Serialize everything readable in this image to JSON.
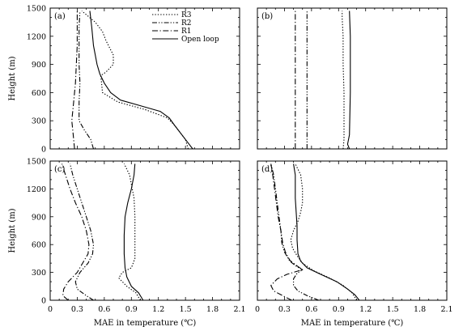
{
  "chart_data": {
    "type": "line",
    "xlabel": "MAE in temperature (℃)",
    "ylabel": "Height (m)",
    "xlim": [
      0,
      2.1
    ],
    "ylim": [
      0,
      1500
    ],
    "xticks": [
      0,
      0.3,
      0.6,
      0.9,
      1.2,
      1.5,
      1.8,
      2.1
    ],
    "xtick_labels": [
      "0",
      "0.3",
      "0.6",
      "0.9",
      "1.2",
      "1.5",
      "1.8",
      "2.1"
    ],
    "yticks": [
      0,
      300,
      600,
      900,
      1200,
      1500
    ],
    "ytick_labels": [
      "0",
      "300",
      "600",
      "900",
      "1200",
      "1500"
    ],
    "legend": {
      "placement": "top-right of panel (a)",
      "entries": [
        {
          "name": "R3",
          "dash": "dotted"
        },
        {
          "name": "R2",
          "dash": "dash-dot-dot"
        },
        {
          "name": "R1",
          "dash": "dash-dot"
        },
        {
          "name": "Open loop",
          "dash": "solid"
        }
      ]
    },
    "panels": [
      {
        "label": "(a)",
        "series": [
          {
            "name": "R3",
            "points": [
              [
                1.53,
                0
              ],
              [
                1.5,
                100
              ],
              [
                1.38,
                250
              ],
              [
                1.3,
                330
              ],
              [
                1.05,
                420
              ],
              [
                0.75,
                500
              ],
              [
                0.58,
                600
              ],
              [
                0.57,
                700
              ],
              [
                0.56,
                780
              ],
              [
                0.62,
                820
              ],
              [
                0.7,
                900
              ],
              [
                0.7,
                1000
              ],
              [
                0.62,
                1150
              ],
              [
                0.58,
                1250
              ],
              [
                0.5,
                1350
              ],
              [
                0.35,
                1470
              ]
            ]
          },
          {
            "name": "R2",
            "points": [
              [
                0.48,
                0
              ],
              [
                0.45,
                100
              ],
              [
                0.38,
                200
              ],
              [
                0.32,
                300
              ],
              [
                0.32,
                500
              ],
              [
                0.33,
                700
              ],
              [
                0.32,
                900
              ],
              [
                0.32,
                1100
              ],
              [
                0.32,
                1300
              ],
              [
                0.33,
                1470
              ]
            ]
          },
          {
            "name": "R1",
            "points": [
              [
                0.27,
                0
              ],
              [
                0.26,
                100
              ],
              [
                0.25,
                200
              ],
              [
                0.24,
                300
              ],
              [
                0.26,
                500
              ],
              [
                0.28,
                700
              ],
              [
                0.29,
                900
              ],
              [
                0.3,
                1100
              ],
              [
                0.3,
                1300
              ],
              [
                0.3,
                1470
              ]
            ]
          },
          {
            "name": "Open loop",
            "points": [
              [
                1.58,
                0
              ],
              [
                1.54,
                50
              ],
              [
                1.46,
                150
              ],
              [
                1.38,
                250
              ],
              [
                1.32,
                330
              ],
              [
                1.22,
                400
              ],
              [
                1.0,
                460
              ],
              [
                0.78,
                520
              ],
              [
                0.67,
                600
              ],
              [
                0.6,
                700
              ],
              [
                0.55,
                800
              ],
              [
                0.52,
                900
              ],
              [
                0.48,
                1100
              ],
              [
                0.46,
                1300
              ],
              [
                0.44,
                1470
              ]
            ]
          }
        ]
      },
      {
        "label": "(b)",
        "series": [
          {
            "name": "R3",
            "points": [
              [
                0.95,
                0
              ],
              [
                0.96,
                100
              ],
              [
                0.96,
                300
              ],
              [
                0.96,
                600
              ],
              [
                0.95,
                900
              ],
              [
                0.95,
                1200
              ],
              [
                0.94,
                1400
              ],
              [
                0.94,
                1470
              ]
            ]
          },
          {
            "name": "R2",
            "points": [
              [
                0.55,
                0
              ],
              [
                0.55,
                100
              ],
              [
                0.55,
                600
              ],
              [
                0.55,
                1200
              ],
              [
                0.55,
                1470
              ]
            ]
          },
          {
            "name": "R1",
            "points": [
              [
                0.42,
                0
              ],
              [
                0.42,
                100
              ],
              [
                0.42,
                600
              ],
              [
                0.42,
                1200
              ],
              [
                0.42,
                1470
              ]
            ]
          },
          {
            "name": "Open loop",
            "points": [
              [
                1.02,
                0
              ],
              [
                1.0,
                50
              ],
              [
                1.02,
                150
              ],
              [
                1.03,
                600
              ],
              [
                1.03,
                1200
              ],
              [
                1.02,
                1470
              ]
            ]
          }
        ]
      },
      {
        "label": "(c)",
        "series": [
          {
            "name": "R3",
            "points": [
              [
                1.0,
                0
              ],
              [
                0.95,
                80
              ],
              [
                0.85,
                150
              ],
              [
                0.76,
                240
              ],
              [
                0.8,
                300
              ],
              [
                0.9,
                350
              ],
              [
                0.94,
                450
              ],
              [
                0.94,
                700
              ],
              [
                0.94,
                900
              ],
              [
                0.93,
                1100
              ],
              [
                0.9,
                1250
              ],
              [
                0.88,
                1350
              ],
              [
                0.82,
                1470
              ]
            ]
          },
          {
            "name": "R2",
            "points": [
              [
                0.48,
                0
              ],
              [
                0.4,
                50
              ],
              [
                0.3,
                120
              ],
              [
                0.28,
                200
              ],
              [
                0.33,
                300
              ],
              [
                0.42,
                400
              ],
              [
                0.47,
                500
              ],
              [
                0.48,
                600
              ],
              [
                0.45,
                750
              ],
              [
                0.4,
                900
              ],
              [
                0.35,
                1050
              ],
              [
                0.3,
                1200
              ],
              [
                0.25,
                1350
              ],
              [
                0.22,
                1470
              ]
            ]
          },
          {
            "name": "R1",
            "points": [
              [
                0.2,
                0
              ],
              [
                0.14,
                50
              ],
              [
                0.15,
                120
              ],
              [
                0.2,
                200
              ],
              [
                0.3,
                300
              ],
              [
                0.36,
                400
              ],
              [
                0.42,
                500
              ],
              [
                0.43,
                600
              ],
              [
                0.4,
                750
              ],
              [
                0.35,
                900
              ],
              [
                0.28,
                1050
              ],
              [
                0.22,
                1200
              ],
              [
                0.17,
                1350
              ],
              [
                0.13,
                1470
              ]
            ]
          },
          {
            "name": "Open loop",
            "points": [
              [
                1.03,
                0
              ],
              [
                0.98,
                80
              ],
              [
                0.9,
                150
              ],
              [
                0.85,
                250
              ],
              [
                0.83,
                350
              ],
              [
                0.82,
                500
              ],
              [
                0.82,
                700
              ],
              [
                0.83,
                900
              ],
              [
                0.86,
                1050
              ],
              [
                0.9,
                1200
              ],
              [
                0.93,
                1350
              ],
              [
                0.94,
                1470
              ]
            ]
          }
        ]
      },
      {
        "label": "(d)",
        "series": [
          {
            "name": "R3",
            "points": [
              [
                1.1,
                0
              ],
              [
                1.05,
                80
              ],
              [
                0.95,
                160
              ],
              [
                0.8,
                240
              ],
              [
                0.62,
                320
              ],
              [
                0.5,
                400
              ],
              [
                0.44,
                480
              ],
              [
                0.39,
                560
              ],
              [
                0.37,
                650
              ],
              [
                0.4,
                750
              ],
              [
                0.45,
                850
              ],
              [
                0.48,
                950
              ],
              [
                0.5,
                1050
              ],
              [
                0.5,
                1200
              ],
              [
                0.48,
                1350
              ],
              [
                0.42,
                1470
              ]
            ]
          },
          {
            "name": "R2",
            "points": [
              [
                0.68,
                0
              ],
              [
                0.55,
                50
              ],
              [
                0.45,
                100
              ],
              [
                0.4,
                160
              ],
              [
                0.4,
                230
              ],
              [
                0.44,
                290
              ],
              [
                0.5,
                330
              ],
              [
                0.44,
                360
              ],
              [
                0.36,
                420
              ],
              [
                0.3,
                520
              ],
              [
                0.27,
                620
              ],
              [
                0.26,
                750
              ],
              [
                0.24,
                900
              ],
              [
                0.22,
                1050
              ],
              [
                0.2,
                1200
              ],
              [
                0.18,
                1350
              ],
              [
                0.15,
                1470
              ]
            ]
          },
          {
            "name": "R1",
            "points": [
              [
                0.38,
                0
              ],
              [
                0.28,
                50
              ],
              [
                0.18,
                100
              ],
              [
                0.15,
                160
              ],
              [
                0.22,
                230
              ],
              [
                0.33,
                280
              ],
              [
                0.5,
                330
              ],
              [
                0.44,
                370
              ],
              [
                0.36,
                430
              ],
              [
                0.31,
                520
              ],
              [
                0.28,
                620
              ],
              [
                0.26,
                750
              ],
              [
                0.23,
                900
              ],
              [
                0.21,
                1050
              ],
              [
                0.19,
                1200
              ],
              [
                0.17,
                1350
              ],
              [
                0.15,
                1470
              ]
            ]
          },
          {
            "name": "Open loop",
            "points": [
              [
                1.13,
                0
              ],
              [
                1.08,
                60
              ],
              [
                1.0,
                120
              ],
              [
                0.88,
                200
              ],
              [
                0.7,
                280
              ],
              [
                0.55,
                350
              ],
              [
                0.48,
                420
              ],
              [
                0.45,
                500
              ],
              [
                0.44,
                650
              ],
              [
                0.44,
                800
              ],
              [
                0.43,
                950
              ],
              [
                0.42,
                1100
              ],
              [
                0.42,
                1250
              ],
              [
                0.42,
                1350
              ],
              [
                0.4,
                1470
              ]
            ]
          }
        ]
      }
    ]
  }
}
